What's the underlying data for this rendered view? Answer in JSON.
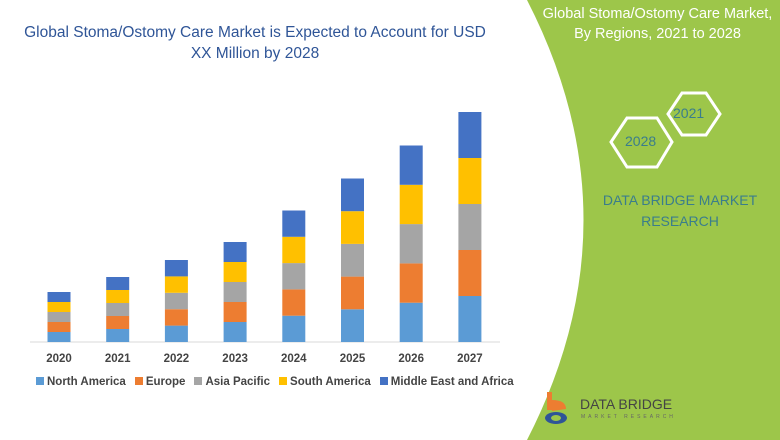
{
  "header": {
    "chart_title": "Global Stoma/Ostomy Care Market is Expected to Account for USD XX Million by 2028",
    "panel_title": "Global Stoma/Ostomy Care Market, By Regions, 2021 to 2028",
    "hex_a": "2021",
    "hex_b": "2028",
    "brand": "DATA BRIDGE MARKET RESEARCH",
    "logo_main": "DATA BRIDGE",
    "logo_sub": "MARKET RESEARCH"
  },
  "colors": {
    "panel": "#9dc64a",
    "teal": "#3a7d8c"
  },
  "chart_data": {
    "type": "bar",
    "stacked": true,
    "title": "Global Stoma/Ostomy Care Market is Expected to Account for USD XX Million by 2028",
    "categories": [
      "2020",
      "2021",
      "2022",
      "2023",
      "2024",
      "2025",
      "2026",
      "2027"
    ],
    "series": [
      {
        "name": "North America",
        "color": "#5b9bd5",
        "values": [
          10,
          13,
          16.4,
          20,
          26.3,
          32.7,
          39.3,
          46
        ]
      },
      {
        "name": "Europe",
        "color": "#ed7d31",
        "values": [
          10,
          13,
          16.4,
          20,
          26.3,
          32.7,
          39.3,
          46
        ]
      },
      {
        "name": "Asia Pacific",
        "color": "#a5a5a5",
        "values": [
          10,
          13,
          16.4,
          20,
          26.3,
          32.7,
          39.3,
          46
        ]
      },
      {
        "name": "South America",
        "color": "#ffc000",
        "values": [
          10,
          13,
          16.4,
          20,
          26.3,
          32.7,
          39.3,
          46
        ]
      },
      {
        "name": "Middle East and Africa",
        "color": "#4472c4",
        "values": [
          10,
          13,
          16.4,
          20,
          26.3,
          32.7,
          39.3,
          46
        ]
      }
    ],
    "grid": false,
    "legend": "bottom",
    "ylabel": "",
    "xlabel": ""
  }
}
